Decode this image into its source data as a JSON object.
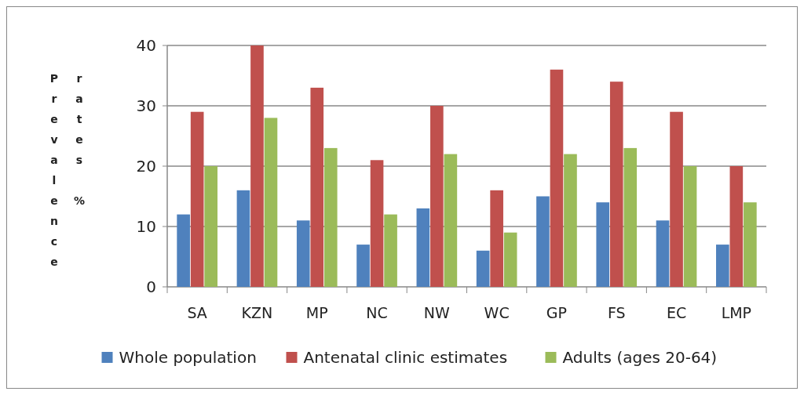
{
  "chart_data": {
    "type": "bar",
    "ylabel": "Prevalence rates %",
    "categories": [
      "SA",
      "KZN",
      "MP",
      "NC",
      "NW",
      "WC",
      "GP",
      "FS",
      "EC",
      "LMP"
    ],
    "series": [
      {
        "name": "Whole population",
        "color": "#4f81bd",
        "values": [
          12,
          16,
          11,
          7,
          13,
          6,
          15,
          14,
          11,
          7
        ]
      },
      {
        "name": "Antenatal clinic estimates",
        "color": "#c0504d",
        "values": [
          29,
          40,
          33,
          21,
          30,
          16,
          36,
          34,
          29,
          20
        ]
      },
      {
        "name": "Adults (ages 20-64)",
        "color": "#9bbb59",
        "values": [
          20,
          28,
          23,
          12,
          22,
          9,
          22,
          23,
          20,
          14
        ]
      }
    ],
    "ylim": [
      0,
      40
    ],
    "yticks": [
      0,
      10,
      20,
      30,
      40
    ],
    "grid": "y",
    "legend": "bottom"
  }
}
